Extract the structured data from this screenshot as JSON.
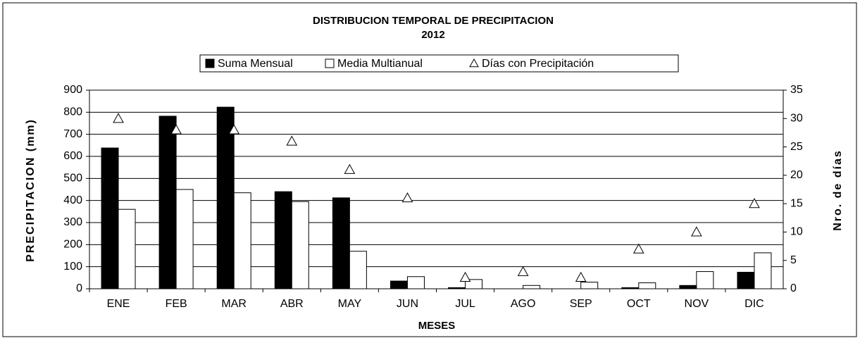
{
  "chart_data": {
    "type": "bar",
    "title": "DISTRIBUCION TEMPORAL DE PRECIPITACION",
    "subtitle": "2012",
    "x_label": "MESES",
    "y_label": "PRECIPITACION (mm)",
    "y2_label": "Nro. de días",
    "categories": [
      "ENE",
      "FEB",
      "MAR",
      "ABR",
      "MAY",
      "JUN",
      "JUL",
      "AGO",
      "SEP",
      "OCT",
      "NOV",
      "DIC"
    ],
    "series": [
      {
        "name": "Suma Mensual",
        "color": "#000000",
        "values": [
          638,
          782,
          823,
          440,
          412,
          35,
          5,
          0,
          0,
          5,
          15,
          75
        ]
      },
      {
        "name": "Media Multianual",
        "color": "#ffffff",
        "values": [
          360,
          450,
          435,
          395,
          170,
          55,
          42,
          15,
          30,
          27,
          78,
          163
        ]
      },
      {
        "name": "Días con Precipitación",
        "color": "#ffffff",
        "axis": "y2",
        "values": [
          30,
          28,
          28,
          26,
          21,
          16,
          2,
          3,
          2,
          7,
          10,
          15
        ]
      }
    ],
    "ylim": [
      0,
      900
    ],
    "yticks": [
      0,
      100,
      200,
      300,
      400,
      500,
      600,
      700,
      800,
      900
    ],
    "y2lim": [
      0,
      35
    ],
    "y2ticks": [
      0,
      5,
      10,
      15,
      20,
      25,
      30,
      35
    ],
    "grid": true
  }
}
